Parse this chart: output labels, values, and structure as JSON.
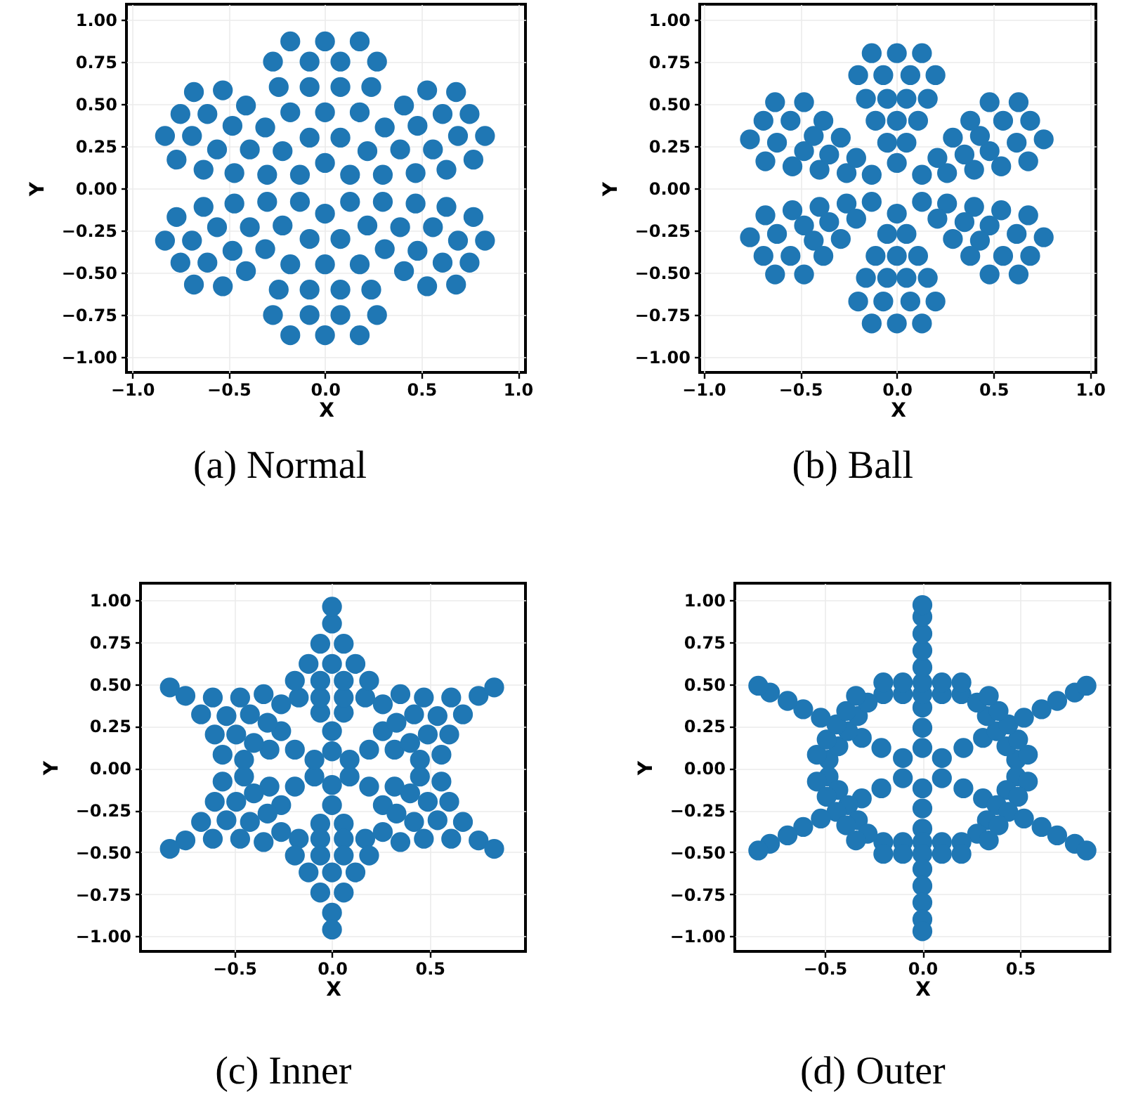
{
  "chart_data": [
    {
      "type": "scatter",
      "title": "(a) Normal",
      "xlabel": "X",
      "ylabel": "Y",
      "xlim": [
        -1.03,
        1.04
      ],
      "ylim": [
        -1.09,
        1.09
      ],
      "xticks": [
        {
          "value": -1,
          "label": "−1.0"
        },
        {
          "value": -0.5,
          "label": "−0.5"
        },
        {
          "value": 0,
          "label": "0.0"
        },
        {
          "value": 0.5,
          "label": "0.5"
        },
        {
          "value": 1,
          "label": "1.0"
        }
      ],
      "yticks": [
        {
          "value": -1,
          "label": "−1.00"
        },
        {
          "value": -0.75,
          "label": "−0.75"
        },
        {
          "value": -0.5,
          "label": "−0.50"
        },
        {
          "value": -0.25,
          "label": "−0.25"
        },
        {
          "value": 0,
          "label": "0.00"
        },
        {
          "value": 0.25,
          "label": "0.25"
        },
        {
          "value": 0.5,
          "label": "0.50"
        },
        {
          "value": 0.75,
          "label": "0.75"
        },
        {
          "value": 1,
          "label": "1.00"
        }
      ],
      "grid": true,
      "marker": "circle",
      "series": [
        {
          "color": "#1f77b4",
          "x": [
            0,
            0.08,
            -0.08,
            0.18,
            0,
            -0.18,
            0.24,
            0.08,
            -0.08,
            -0.24,
            0.27,
            0.08,
            -0.08,
            -0.27,
            0.18,
            0,
            -0.18,
            0.13,
            0.3,
            0.22,
            0.47,
            0.39,
            0.31,
            0.63,
            0.56,
            0.48,
            0.41,
            0.77,
            0.69,
            0.61,
            0.53,
            0.83,
            0.75,
            0.68,
            0.13,
            0.3,
            0.22,
            0.47,
            0.39,
            0.31,
            0.63,
            0.56,
            0.48,
            0.41,
            0.77,
            0.69,
            0.61,
            0.53,
            0.83,
            0.75,
            0.68,
            0,
            0.08,
            -0.08,
            0.18,
            0,
            -0.18,
            0.24,
            0.08,
            -0.08,
            -0.24,
            0.27,
            0.08,
            -0.08,
            -0.27,
            0.18,
            0,
            -0.18,
            -0.13,
            -0.3,
            -0.22,
            -0.47,
            -0.39,
            -0.31,
            -0.63,
            -0.56,
            -0.48,
            -0.41,
            -0.77,
            -0.69,
            -0.61,
            -0.53,
            -0.83,
            -0.75,
            -0.68,
            -0.13,
            -0.3,
            -0.22,
            -0.47,
            -0.39,
            -0.31,
            -0.63,
            -0.56,
            -0.48,
            -0.41,
            -0.77,
            -0.69,
            -0.61,
            -0.53,
            -0.83,
            -0.75,
            -0.68
          ],
          "values": [
            0.15,
            0.3,
            0.3,
            0.45,
            0.45,
            0.45,
            0.6,
            0.6,
            0.6,
            0.6,
            0.75,
            0.75,
            0.75,
            0.75,
            0.87,
            0.87,
            0.87,
            0.08,
            0.08,
            0.22,
            0.09,
            0.23,
            0.36,
            0.11,
            0.23,
            0.37,
            0.49,
            0.17,
            0.31,
            0.44,
            0.58,
            0.31,
            0.44,
            0.57,
            -0.08,
            -0.08,
            -0.22,
            -0.09,
            -0.23,
            -0.36,
            -0.11,
            -0.23,
            -0.37,
            -0.49,
            -0.17,
            -0.31,
            -0.44,
            -0.58,
            -0.31,
            -0.44,
            -0.57,
            -0.15,
            -0.3,
            -0.3,
            -0.45,
            -0.45,
            -0.45,
            -0.6,
            -0.6,
            -0.6,
            -0.6,
            -0.75,
            -0.75,
            -0.75,
            -0.75,
            -0.87,
            -0.87,
            -0.87,
            -0.08,
            -0.08,
            -0.22,
            -0.09,
            -0.23,
            -0.36,
            -0.11,
            -0.23,
            -0.37,
            -0.49,
            -0.17,
            -0.31,
            -0.44,
            -0.58,
            -0.31,
            -0.44,
            -0.57,
            0.08,
            0.08,
            0.22,
            0.09,
            0.23,
            0.36,
            0.11,
            0.23,
            0.37,
            0.49,
            0.17,
            0.31,
            0.44,
            0.58,
            0.31,
            0.44,
            0.57
          ]
        }
      ]
    },
    {
      "type": "scatter",
      "title": "(b) Ball",
      "xlabel": "X",
      "ylabel": "Y",
      "xlim": [
        -1.02,
        1.03
      ],
      "ylim": [
        -1.09,
        1.09
      ],
      "xticks": [
        {
          "value": -1,
          "label": "−1.0"
        },
        {
          "value": -0.5,
          "label": "−0.5"
        },
        {
          "value": 0,
          "label": "0.0"
        },
        {
          "value": 0.5,
          "label": "0.5"
        },
        {
          "value": 1,
          "label": "1.0"
        }
      ],
      "yticks": [
        {
          "value": -1,
          "label": "−1.00"
        },
        {
          "value": -0.75,
          "label": "−0.75"
        },
        {
          "value": -0.5,
          "label": "−0.50"
        },
        {
          "value": -0.25,
          "label": "−0.25"
        },
        {
          "value": 0,
          "label": "0.00"
        },
        {
          "value": 0.25,
          "label": "0.25"
        },
        {
          "value": 0.5,
          "label": "0.50"
        },
        {
          "value": 0.75,
          "label": "0.75"
        },
        {
          "value": 1,
          "label": "1.00"
        }
      ],
      "grid": true,
      "marker": "circle",
      "series": [
        {
          "color": "#1f77b4",
          "x": [
            0,
            0.05,
            -0.05,
            0.11,
            0,
            -0.11,
            0.16,
            0.05,
            -0.05,
            -0.16,
            0.2,
            0.07,
            -0.07,
            -0.2,
            0.13,
            0,
            -0.13,
            0.13,
            0.26,
            0.21,
            0.4,
            0.35,
            0.29,
            0.54,
            0.48,
            0.43,
            0.38,
            0.68,
            0.62,
            0.55,
            0.48,
            0.76,
            0.69,
            0.63,
            0.13,
            0.26,
            0.21,
            0.4,
            0.35,
            0.29,
            0.54,
            0.48,
            0.43,
            0.38,
            0.68,
            0.62,
            0.55,
            0.48,
            0.76,
            0.69,
            0.63,
            0,
            0.05,
            -0.05,
            0.11,
            0,
            -0.11,
            0.16,
            0.05,
            -0.05,
            -0.16,
            0.2,
            0.07,
            -0.07,
            -0.2,
            0.13,
            0,
            -0.13,
            -0.13,
            -0.26,
            -0.21,
            -0.4,
            -0.35,
            -0.29,
            -0.54,
            -0.48,
            -0.43,
            -0.38,
            -0.68,
            -0.62,
            -0.55,
            -0.48,
            -0.76,
            -0.69,
            -0.63,
            -0.13,
            -0.26,
            -0.21,
            -0.4,
            -0.35,
            -0.29,
            -0.54,
            -0.48,
            -0.43,
            -0.38,
            -0.68,
            -0.62,
            -0.55,
            -0.48,
            -0.76,
            -0.69,
            -0.63
          ],
          "values": [
            0.15,
            0.27,
            0.27,
            0.4,
            0.4,
            0.4,
            0.53,
            0.53,
            0.53,
            0.53,
            0.67,
            0.67,
            0.67,
            0.67,
            0.8,
            0.8,
            0.8,
            0.08,
            0.09,
            0.18,
            0.11,
            0.2,
            0.3,
            0.13,
            0.22,
            0.31,
            0.4,
            0.16,
            0.27,
            0.4,
            0.51,
            0.29,
            0.4,
            0.51,
            -0.08,
            -0.09,
            -0.18,
            -0.11,
            -0.2,
            -0.3,
            -0.13,
            -0.22,
            -0.31,
            -0.4,
            -0.16,
            -0.27,
            -0.4,
            -0.51,
            -0.29,
            -0.4,
            -0.51,
            -0.15,
            -0.27,
            -0.27,
            -0.4,
            -0.4,
            -0.4,
            -0.53,
            -0.53,
            -0.53,
            -0.53,
            -0.67,
            -0.67,
            -0.67,
            -0.67,
            -0.8,
            -0.8,
            -0.8,
            -0.08,
            -0.09,
            -0.18,
            -0.11,
            -0.2,
            -0.3,
            -0.13,
            -0.22,
            -0.31,
            -0.4,
            -0.16,
            -0.27,
            -0.4,
            -0.51,
            -0.29,
            -0.4,
            -0.51,
            0.08,
            0.09,
            0.18,
            0.11,
            0.2,
            0.3,
            0.13,
            0.22,
            0.31,
            0.4,
            0.16,
            0.27,
            0.4,
            0.51,
            0.29,
            0.4,
            0.51
          ]
        }
      ]
    },
    {
      "type": "scatter",
      "title": "(c) Inner",
      "xlabel": "X",
      "ylabel": "Y",
      "xlim": [
        -0.98,
        0.99
      ],
      "ylim": [
        -1.09,
        1.1
      ],
      "xticks": [
        {
          "value": -0.5,
          "label": "−0.5"
        },
        {
          "value": 0,
          "label": "0.0"
        },
        {
          "value": 0.5,
          "label": "0.5"
        }
      ],
      "yticks": [
        {
          "value": -1,
          "label": "−1.00"
        },
        {
          "value": -0.75,
          "label": "−0.75"
        },
        {
          "value": -0.5,
          "label": "−0.50"
        },
        {
          "value": -0.25,
          "label": "−0.25"
        },
        {
          "value": 0,
          "label": "0.00"
        },
        {
          "value": 0.25,
          "label": "0.25"
        },
        {
          "value": 0.5,
          "label": "0.50"
        },
        {
          "value": 0.75,
          "label": "0.75"
        },
        {
          "value": 1,
          "label": "1.00"
        }
      ],
      "grid": true,
      "marker": "circle",
      "series": [
        {
          "color": "#1f77b4",
          "x": [
            0,
            0,
            0.06,
            -0.06,
            0.17,
            0.06,
            -0.06,
            -0.17,
            0.19,
            0.06,
            -0.06,
            -0.19,
            0.12,
            0,
            -0.12,
            0.06,
            -0.06,
            0,
            0,
            0.09,
            0.19,
            0.32,
            0.26,
            0.45,
            0.4,
            0.33,
            0.26,
            0.56,
            0.49,
            0.42,
            0.35,
            0.6,
            0.54,
            0.47,
            0.67,
            0.61,
            0.75,
            0.83,
            0.09,
            0.19,
            0.32,
            0.26,
            0.45,
            0.4,
            0.33,
            0.26,
            0.56,
            0.49,
            0.42,
            0.35,
            0.6,
            0.54,
            0.47,
            0.67,
            0.61,
            0.75,
            0.83,
            0,
            0,
            0.06,
            -0.06,
            0.17,
            0.06,
            -0.06,
            -0.17,
            0.19,
            0.06,
            -0.06,
            -0.19,
            0.12,
            0,
            -0.12,
            0.06,
            -0.06,
            0,
            0,
            -0.09,
            -0.19,
            -0.32,
            -0.26,
            -0.45,
            -0.4,
            -0.33,
            -0.26,
            -0.56,
            -0.49,
            -0.42,
            -0.35,
            -0.6,
            -0.54,
            -0.47,
            -0.67,
            -0.61,
            -0.75,
            -0.83,
            -0.09,
            -0.19,
            -0.32,
            -0.26,
            -0.45,
            -0.4,
            -0.33,
            -0.26,
            -0.56,
            -0.49,
            -0.42,
            -0.35,
            -0.6,
            -0.54,
            -0.47,
            -0.67,
            -0.61,
            -0.75,
            -0.83
          ],
          "values": [
            0.1,
            0.22,
            0.33,
            0.33,
            0.42,
            0.42,
            0.42,
            0.42,
            0.52,
            0.52,
            0.52,
            0.52,
            0.62,
            0.62,
            0.62,
            0.74,
            0.74,
            0.86,
            0.96,
            0.05,
            0.11,
            0.11,
            0.22,
            0.05,
            0.15,
            0.27,
            0.38,
            0.08,
            0.2,
            0.32,
            0.44,
            0.2,
            0.31,
            0.42,
            0.32,
            0.42,
            0.43,
            0.48,
            -0.05,
            -0.11,
            -0.11,
            -0.22,
            -0.05,
            -0.15,
            -0.27,
            -0.38,
            -0.08,
            -0.2,
            -0.32,
            -0.44,
            -0.2,
            -0.31,
            -0.42,
            -0.32,
            -0.42,
            -0.43,
            -0.48,
            -0.1,
            -0.22,
            -0.33,
            -0.33,
            -0.42,
            -0.42,
            -0.42,
            -0.42,
            -0.52,
            -0.52,
            -0.52,
            -0.52,
            -0.62,
            -0.62,
            -0.62,
            -0.74,
            -0.74,
            -0.86,
            -0.96,
            -0.05,
            -0.11,
            -0.11,
            -0.22,
            -0.05,
            -0.15,
            -0.27,
            -0.38,
            -0.08,
            -0.2,
            -0.32,
            -0.44,
            -0.2,
            -0.31,
            -0.42,
            -0.32,
            -0.42,
            -0.43,
            -0.48,
            0.05,
            0.11,
            0.11,
            0.22,
            0.05,
            0.15,
            0.27,
            0.38,
            0.08,
            0.2,
            0.32,
            0.44,
            0.2,
            0.31,
            0.42,
            0.32,
            0.42,
            0.43,
            0.48
          ]
        }
      ]
    },
    {
      "type": "scatter",
      "title": "(d) Outer",
      "xlabel": "X",
      "ylabel": "Y",
      "xlim": [
        -0.96,
        0.96
      ],
      "ylim": [
        -1.09,
        1.1
      ],
      "xticks": [
        {
          "value": -0.5,
          "label": "−0.5"
        },
        {
          "value": 0,
          "label": "0.0"
        },
        {
          "value": 0.5,
          "label": "0.5"
        }
      ],
      "yticks": [
        {
          "value": -1,
          "label": "−1.00"
        },
        {
          "value": -0.75,
          "label": "−0.75"
        },
        {
          "value": -0.5,
          "label": "−0.50"
        },
        {
          "value": -0.25,
          "label": "−0.25"
        },
        {
          "value": 0,
          "label": "0.00"
        },
        {
          "value": 0.25,
          "label": "0.25"
        },
        {
          "value": 0.5,
          "label": "0.50"
        },
        {
          "value": 0.75,
          "label": "0.75"
        },
        {
          "value": 1,
          "label": "1.00"
        }
      ],
      "grid": true,
      "marker": "circle",
      "series": [
        {
          "color": "#1f77b4",
          "x": [
            0,
            0,
            0,
            0.2,
            0.1,
            0,
            -0.1,
            -0.2,
            0.2,
            0.1,
            0,
            -0.1,
            -0.2,
            0,
            0,
            0,
            0,
            0,
            0.1,
            0.21,
            0.31,
            0.48,
            0.43,
            0.38,
            0.33,
            0.28,
            0.54,
            0.49,
            0.44,
            0.39,
            0.34,
            0.52,
            0.61,
            0.69,
            0.78,
            0.84,
            0.1,
            0.21,
            0.31,
            0.48,
            0.43,
            0.38,
            0.33,
            0.28,
            0.54,
            0.49,
            0.44,
            0.39,
            0.34,
            0.52,
            0.61,
            0.69,
            0.78,
            0.84,
            0,
            0,
            0,
            0.2,
            0.1,
            0,
            -0.1,
            -0.2,
            0.2,
            0.1,
            0,
            -0.1,
            -0.2,
            0,
            0,
            0,
            0,
            0,
            -0.1,
            -0.21,
            -0.31,
            -0.48,
            -0.43,
            -0.38,
            -0.33,
            -0.28,
            -0.54,
            -0.49,
            -0.44,
            -0.39,
            -0.34,
            -0.52,
            -0.61,
            -0.69,
            -0.78,
            -0.84,
            -0.1,
            -0.21,
            -0.31,
            -0.48,
            -0.43,
            -0.38,
            -0.33,
            -0.28,
            -0.54,
            -0.49,
            -0.44,
            -0.39,
            -0.34,
            -0.52,
            -0.61,
            -0.69,
            -0.78,
            -0.84
          ],
          "values": [
            0.12,
            0.24,
            0.36,
            0.44,
            0.44,
            0.44,
            0.44,
            0.44,
            0.51,
            0.51,
            0.51,
            0.51,
            0.51,
            0.6,
            0.7,
            0.8,
            0.9,
            0.97,
            0.06,
            0.12,
            0.18,
            0.05,
            0.13,
            0.22,
            0.31,
            0.39,
            0.08,
            0.17,
            0.26,
            0.34,
            0.43,
            0.3,
            0.35,
            0.4,
            0.45,
            0.49,
            -0.06,
            -0.12,
            -0.18,
            -0.05,
            -0.13,
            -0.22,
            -0.31,
            -0.39,
            -0.08,
            -0.17,
            -0.26,
            -0.34,
            -0.43,
            -0.3,
            -0.35,
            -0.4,
            -0.45,
            -0.49,
            -0.12,
            -0.24,
            -0.36,
            -0.44,
            -0.44,
            -0.44,
            -0.44,
            -0.44,
            -0.51,
            -0.51,
            -0.51,
            -0.51,
            -0.51,
            -0.6,
            -0.7,
            -0.8,
            -0.9,
            -0.97,
            -0.06,
            -0.12,
            -0.18,
            -0.05,
            -0.13,
            -0.22,
            -0.31,
            -0.39,
            -0.08,
            -0.17,
            -0.26,
            -0.34,
            -0.43,
            -0.3,
            -0.35,
            -0.4,
            -0.45,
            -0.49,
            0.06,
            0.12,
            0.18,
            0.05,
            0.13,
            0.22,
            0.31,
            0.39,
            0.08,
            0.17,
            0.26,
            0.34,
            0.43,
            0.3,
            0.35,
            0.4,
            0.45,
            0.49
          ]
        }
      ]
    }
  ]
}
